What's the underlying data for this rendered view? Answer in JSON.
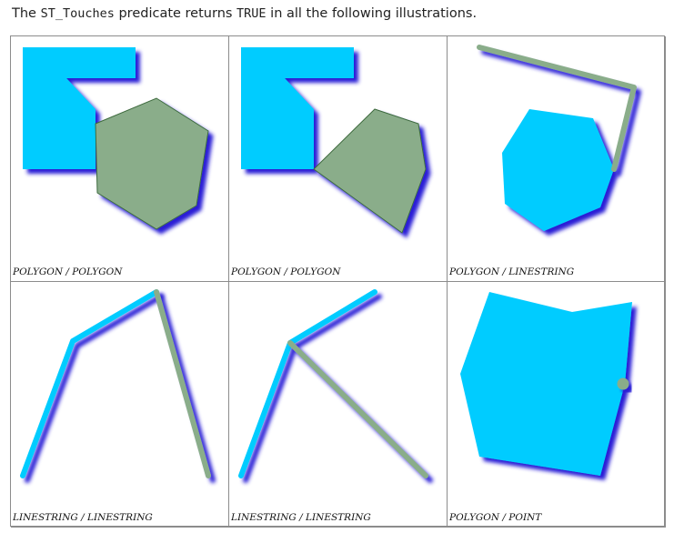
{
  "intro": {
    "prefix": "The ",
    "function_name": "ST_Touches",
    "middle": " predicate returns ",
    "true_literal": "TRUE",
    "suffix": " in all the following illustrations."
  },
  "colors": {
    "cyan_shape": "#00ccff",
    "green_shape": "#8aad8a",
    "shadow": "#2a1fd6",
    "green_outline": "#3e6a3e"
  },
  "illustrations": [
    {
      "caption": "POLYGON / POLYGON"
    },
    {
      "caption": "POLYGON / POLYGON"
    },
    {
      "caption": "POLYGON / LINESTRING"
    },
    {
      "caption": "LINESTRING / LINESTRING"
    },
    {
      "caption": "LINESTRING / LINESTRING"
    },
    {
      "caption": "POLYGON / POINT"
    }
  ]
}
